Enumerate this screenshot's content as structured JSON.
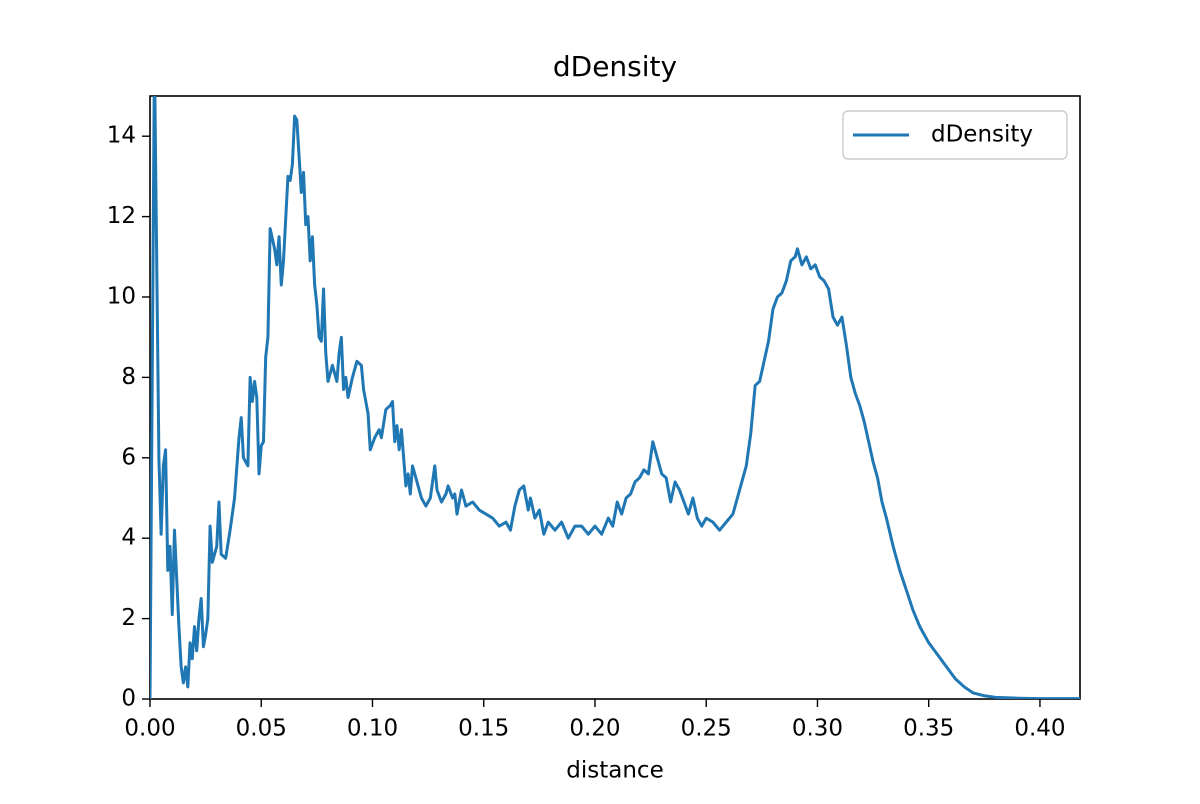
{
  "chart_data": {
    "type": "line",
    "title": "dDensity",
    "xlabel": "distance",
    "x": [
      0.0,
      0.001,
      0.002,
      0.003,
      0.004,
      0.005,
      0.006,
      0.007,
      0.008,
      0.009,
      0.01,
      0.011,
      0.012,
      0.013,
      0.014,
      0.015,
      0.016,
      0.017,
      0.018,
      0.019,
      0.02,
      0.021,
      0.022,
      0.023,
      0.024,
      0.025,
      0.026,
      0.027,
      0.028,
      0.03,
      0.031,
      0.032,
      0.034,
      0.036,
      0.038,
      0.04,
      0.041,
      0.042,
      0.044,
      0.045,
      0.046,
      0.047,
      0.048,
      0.049,
      0.05,
      0.051,
      0.052,
      0.053,
      0.054,
      0.056,
      0.057,
      0.058,
      0.059,
      0.06,
      0.062,
      0.063,
      0.064,
      0.065,
      0.066,
      0.067,
      0.068,
      0.069,
      0.07,
      0.071,
      0.072,
      0.073,
      0.074,
      0.075,
      0.076,
      0.077,
      0.078,
      0.079,
      0.08,
      0.082,
      0.084,
      0.085,
      0.086,
      0.087,
      0.088,
      0.089,
      0.091,
      0.093,
      0.095,
      0.096,
      0.098,
      0.099,
      0.101,
      0.103,
      0.104,
      0.106,
      0.108,
      0.109,
      0.11,
      0.111,
      0.112,
      0.113,
      0.114,
      0.115,
      0.116,
      0.117,
      0.118,
      0.12,
      0.122,
      0.124,
      0.126,
      0.128,
      0.129,
      0.131,
      0.133,
      0.134,
      0.136,
      0.137,
      0.138,
      0.14,
      0.142,
      0.145,
      0.148,
      0.151,
      0.154,
      0.157,
      0.16,
      0.162,
      0.164,
      0.166,
      0.168,
      0.17,
      0.171,
      0.173,
      0.175,
      0.177,
      0.179,
      0.182,
      0.185,
      0.188,
      0.191,
      0.194,
      0.197,
      0.2,
      0.203,
      0.206,
      0.208,
      0.21,
      0.212,
      0.214,
      0.216,
      0.218,
      0.22,
      0.222,
      0.224,
      0.226,
      0.228,
      0.23,
      0.232,
      0.234,
      0.236,
      0.238,
      0.24,
      0.242,
      0.244,
      0.246,
      0.248,
      0.25,
      0.253,
      0.256,
      0.259,
      0.262,
      0.264,
      0.266,
      0.268,
      0.27,
      0.272,
      0.274,
      0.276,
      0.278,
      0.28,
      0.282,
      0.284,
      0.286,
      0.288,
      0.29,
      0.291,
      0.293,
      0.295,
      0.297,
      0.299,
      0.301,
      0.303,
      0.305,
      0.307,
      0.309,
      0.311,
      0.313,
      0.315,
      0.317,
      0.319,
      0.321,
      0.323,
      0.325,
      0.327,
      0.329,
      0.331,
      0.334,
      0.337,
      0.34,
      0.343,
      0.346,
      0.35,
      0.354,
      0.358,
      0.362,
      0.366,
      0.37,
      0.375,
      0.38,
      0.39,
      0.4,
      0.418
    ],
    "series": [
      {
        "name": "dDensity",
        "color": "#1f77b4",
        "values": [
          0,
          8,
          16,
          11,
          6,
          4.1,
          5.8,
          6.2,
          3.2,
          3.8,
          2.1,
          4.2,
          3.0,
          1.8,
          0.8,
          0.4,
          0.8,
          0.3,
          1.4,
          1.0,
          1.8,
          1.2,
          2.0,
          2.5,
          1.3,
          1.6,
          2.0,
          4.3,
          3.4,
          3.8,
          4.9,
          3.6,
          3.5,
          4.2,
          5.0,
          6.5,
          7.0,
          6.0,
          5.8,
          8.0,
          7.4,
          7.9,
          7.5,
          5.6,
          6.3,
          6.4,
          8.5,
          9.0,
          11.7,
          11.2,
          10.8,
          11.5,
          10.3,
          10.9,
          13.0,
          12.9,
          13.3,
          14.5,
          14.4,
          13.5,
          12.6,
          13.1,
          11.8,
          12.0,
          10.9,
          11.5,
          10.3,
          9.8,
          9.0,
          8.9,
          10.2,
          8.6,
          7.9,
          8.3,
          7.9,
          8.6,
          9.0,
          7.7,
          8.0,
          7.5,
          8.0,
          8.4,
          8.3,
          7.7,
          7.1,
          6.2,
          6.5,
          6.7,
          6.5,
          7.2,
          7.3,
          7.4,
          6.4,
          6.8,
          6.2,
          6.7,
          6.0,
          5.3,
          5.6,
          5.1,
          5.8,
          5.4,
          5.0,
          4.8,
          5.0,
          5.8,
          5.2,
          4.9,
          5.1,
          5.3,
          5.0,
          5.1,
          4.6,
          5.2,
          4.8,
          4.9,
          4.7,
          4.6,
          4.5,
          4.3,
          4.4,
          4.2,
          4.8,
          5.2,
          5.3,
          4.7,
          5.0,
          4.5,
          4.7,
          4.1,
          4.4,
          4.2,
          4.4,
          4.0,
          4.3,
          4.3,
          4.1,
          4.3,
          4.1,
          4.5,
          4.3,
          4.9,
          4.6,
          5.0,
          5.1,
          5.4,
          5.5,
          5.7,
          5.6,
          6.4,
          6.0,
          5.6,
          5.5,
          4.9,
          5.4,
          5.2,
          4.9,
          4.6,
          5.0,
          4.5,
          4.3,
          4.5,
          4.4,
          4.2,
          4.4,
          4.6,
          5.0,
          5.4,
          5.8,
          6.6,
          7.8,
          7.9,
          8.4,
          8.9,
          9.7,
          10.0,
          10.1,
          10.4,
          10.9,
          11.0,
          11.2,
          10.8,
          11.0,
          10.7,
          10.8,
          10.5,
          10.4,
          10.2,
          9.5,
          9.3,
          9.5,
          8.8,
          8.0,
          7.6,
          7.3,
          6.9,
          6.4,
          5.9,
          5.5,
          4.9,
          4.5,
          3.8,
          3.2,
          2.7,
          2.2,
          1.8,
          1.4,
          1.1,
          0.8,
          0.5,
          0.3,
          0.15,
          0.08,
          0.04,
          0.02,
          0.01,
          0.01
        ]
      }
    ],
    "xlim": [
      0,
      0.418
    ],
    "ylim": [
      0,
      15
    ],
    "xticks": [
      {
        "value": 0,
        "label": "0.00"
      },
      {
        "value": 0.05,
        "label": "0.05"
      },
      {
        "value": 0.1,
        "label": "0.10"
      },
      {
        "value": 0.15,
        "label": "0.15"
      },
      {
        "value": 0.2,
        "label": "0.20"
      },
      {
        "value": 0.25,
        "label": "0.25"
      },
      {
        "value": 0.3,
        "label": "0.30"
      },
      {
        "value": 0.35,
        "label": "0.35"
      },
      {
        "value": 0.4,
        "label": "0.40"
      }
    ],
    "yticks": [
      0,
      2,
      4,
      6,
      8,
      10,
      12,
      14
    ],
    "legend": "upper right"
  }
}
